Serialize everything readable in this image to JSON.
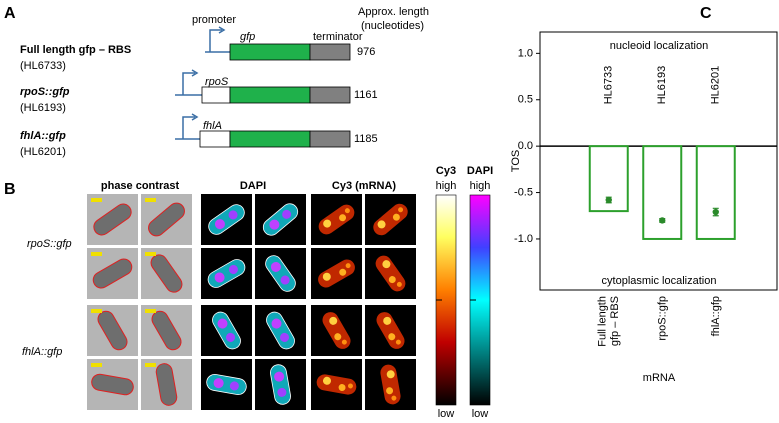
{
  "panel_a": {
    "label": "A",
    "promoter": "promoter",
    "gene": "gfp",
    "terminator": "terminator",
    "length_header": [
      "Approx. length",
      "(nucleotides)"
    ],
    "constructs": [
      {
        "name": "Full length gfp – RBS",
        "strain": "(HL6733)",
        "length": 976
      },
      {
        "name": "rpoS::gfp",
        "strain": "(HL6193)",
        "promoter": "rpoS",
        "length": 1161
      },
      {
        "name": "fhlA::gfp",
        "strain": "(HL6201)",
        "promoter": "fhlA",
        "length": 1185
      }
    ]
  },
  "panel_b": {
    "label": "B",
    "columns": [
      "phase contrast",
      "DAPI",
      "Cy3 (mRNA)"
    ],
    "rows": [
      "rpoS::gfp",
      "fhlA::gfp"
    ],
    "colorbars": [
      {
        "name": "Cy3",
        "high": "high",
        "low": "low"
      },
      {
        "name": "DAPI",
        "high": "high",
        "low": "low"
      }
    ]
  },
  "chart_data": {
    "type": "bar",
    "label": "C",
    "ylabel": "TOS",
    "xlabel": "mRNA",
    "categories": [
      "Full length\ngfp – RBS",
      "rpoS::gfp",
      "fhlA::gfp"
    ],
    "bar_labels": [
      "HL6733",
      "HL6193",
      "HL6201"
    ],
    "annotations": [
      "nucleoid localization",
      "cytoplasmic localization"
    ],
    "series": [
      {
        "type": "bar",
        "color": "#2ca02c",
        "values": [
          -0.7,
          -1,
          -1
        ]
      },
      {
        "type": "point",
        "color": "#2a8a2a",
        "values": [
          -0.58,
          -0.8,
          -0.71
        ],
        "errors": [
          0.03,
          0.02,
          0.04
        ]
      }
    ],
    "ylim": [
      -1.55,
      1.23
    ],
    "yticks": [
      {
        "value": 1,
        "label": "1.0"
      },
      {
        "value": 0.5,
        "label": "0.5"
      },
      {
        "value": 0,
        "label": "0.0"
      },
      {
        "value": -0.5,
        "label": "-0.5"
      },
      {
        "value": -1,
        "label": "-1.0"
      }
    ]
  }
}
